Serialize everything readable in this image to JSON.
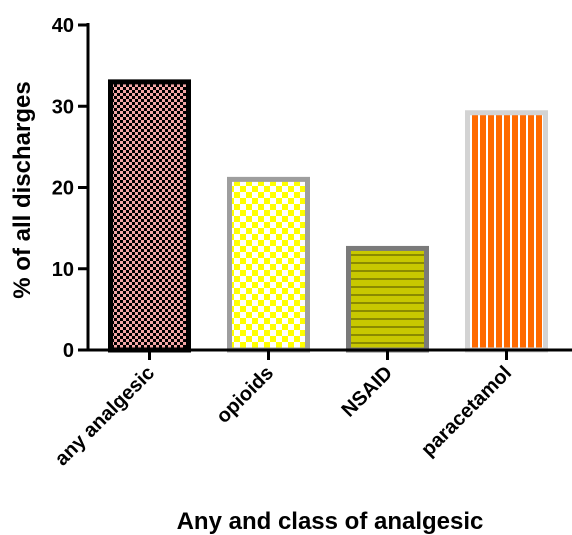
{
  "chart_data": {
    "type": "bar",
    "categories": [
      "any analgesic",
      "opioids",
      "NSAID",
      "paracetamol"
    ],
    "values": [
      33,
      21,
      12.5,
      29.2
    ],
    "xlabel": "Any and class of analgesic",
    "ylabel": "% of all discharges",
    "ylim": [
      0,
      40
    ],
    "yticks": [
      "0",
      "10",
      "20",
      "30",
      "40"
    ],
    "grid": false,
    "bar_styles": [
      {
        "pattern": "checker-small",
        "fill": "#f4a6a6",
        "ink": "#000000",
        "border": "#000000"
      },
      {
        "pattern": "checker-large",
        "fill": "#ffff00",
        "ink": "#ffffff",
        "border": "#9e9e9e"
      },
      {
        "pattern": "horizontal-stripes",
        "fill": "#c8c800",
        "ink": "#8a8a00",
        "border": "#7a7a7a"
      },
      {
        "pattern": "vertical-stripes",
        "fill": "#ff6a00",
        "ink": "#ffffff",
        "border": "#d3d3d3"
      }
    ]
  }
}
